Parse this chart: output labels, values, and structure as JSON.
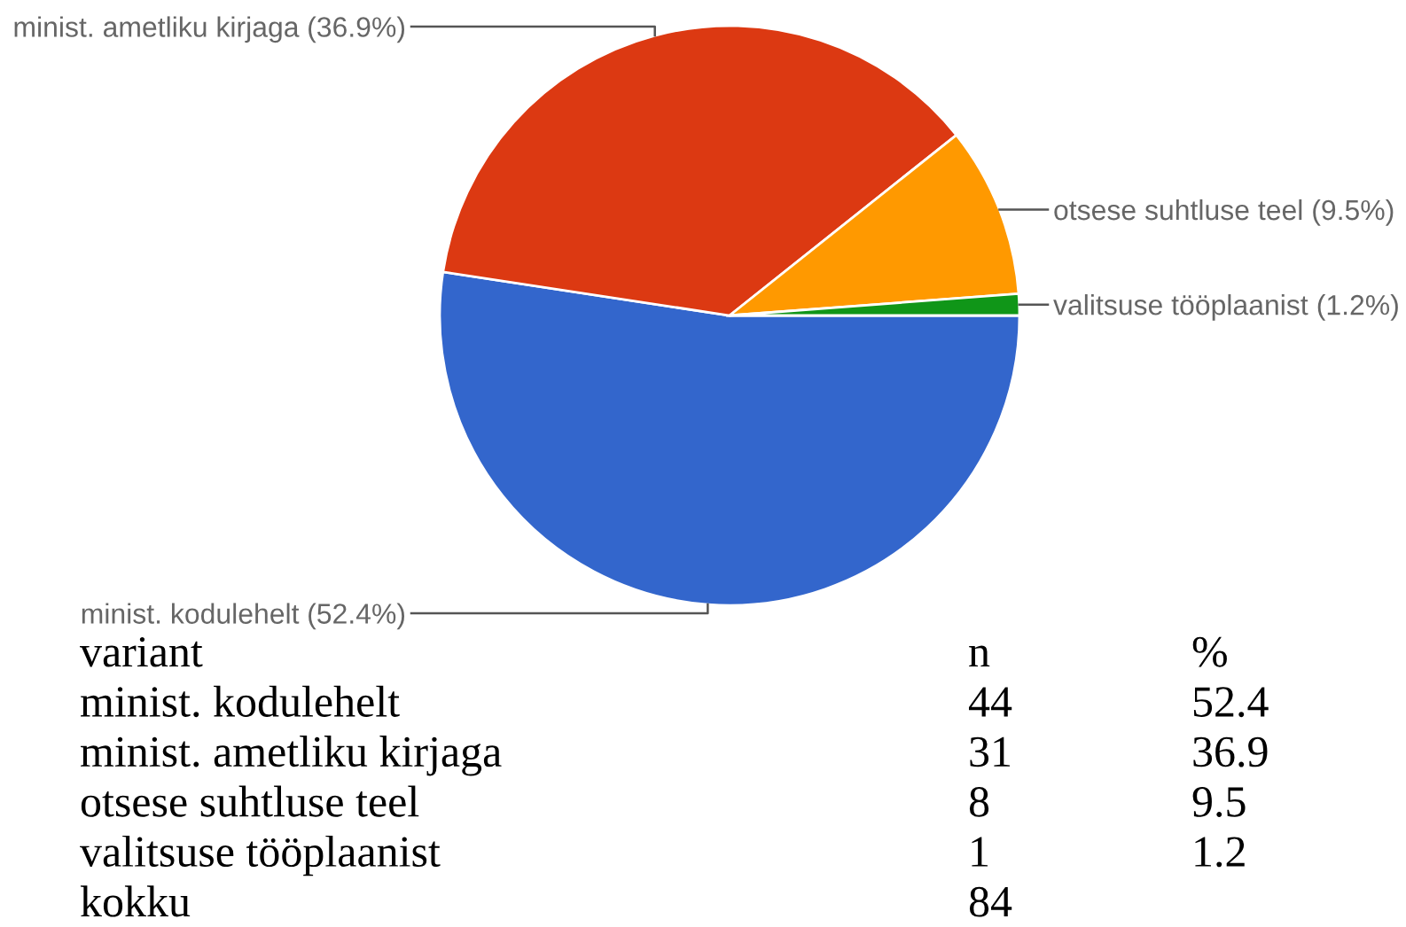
{
  "chart_data": [
    {
      "type": "pie",
      "categories": [
        "minist. kodulehelt",
        "minist. ametliku kirjaga",
        "otsese suhtluse teel",
        "valitsuse tööplaanist"
      ],
      "values": [
        52.4,
        36.9,
        9.5,
        1.2
      ],
      "colors": [
        "#3366cc",
        "#dc3912",
        "#ff9900",
        "#109618"
      ],
      "value_labels": [
        "(52.4%)",
        "(36.9%)",
        "(9.5%)",
        "(1.2%)"
      ]
    },
    {
      "type": "other",
      "annotations": [
        "variant",
        "n",
        "%",
        "minist. kodulehelt",
        "44",
        "52.4",
        "minist. ametliku kirjaga",
        "31",
        "36.9",
        "otsese suhtluse teel",
        "8",
        "9.5",
        "valitsuse tööplaanist",
        "1",
        "1.2",
        "kokku",
        "84"
      ]
    }
  ]
}
